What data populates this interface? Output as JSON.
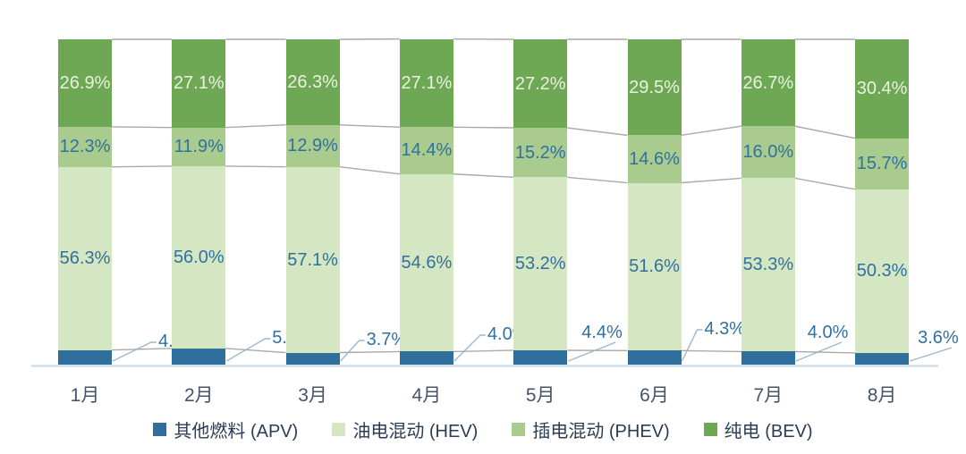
{
  "chart_data": {
    "type": "bar",
    "subtype": "stacked-column-100-percent",
    "title": "",
    "xlabel": "",
    "ylabel": "",
    "ylim": [
      0,
      100
    ],
    "grid": false,
    "legend_position": "bottom",
    "categories": [
      "1月",
      "2月",
      "3月",
      "4月",
      "5月",
      "6月",
      "7月",
      "8月"
    ],
    "series": [
      {
        "key": "apv",
        "name": "其他燃料 (APV)",
        "color": "#2e6f9b",
        "values": [
          4.5,
          5.0,
          3.7,
          4.0,
          4.4,
          4.3,
          4.0,
          3.6
        ],
        "labels": [
          "4.5%",
          "5.0%",
          "3.7%",
          "4.0%",
          "4.4%",
          "4.3%",
          "4.0%",
          "3.6%"
        ],
        "label_color": "#31719f",
        "label_placement": "outside-right-with-leader"
      },
      {
        "key": "hev",
        "name": "油电混动 (HEV)",
        "color": "#d5e6c3",
        "values": [
          56.3,
          56.0,
          57.1,
          54.6,
          53.2,
          51.6,
          53.3,
          50.3
        ],
        "labels": [
          "56.3%",
          "56.0%",
          "57.1%",
          "54.6%",
          "53.2%",
          "51.6%",
          "53.3%",
          "50.3%"
        ],
        "label_color": "#31719f",
        "label_placement": "inside-center"
      },
      {
        "key": "phev",
        "name": "插电混动 (PHEV)",
        "color": "#a9cb8e",
        "values": [
          12.3,
          11.9,
          12.9,
          14.4,
          15.2,
          14.6,
          16.0,
          15.7
        ],
        "labels": [
          "12.3%",
          "11.9%",
          "12.9%",
          "14.4%",
          "15.2%",
          "14.6%",
          "16.0%",
          "15.7%"
        ],
        "label_color": "#31719f",
        "label_placement": "inside-center"
      },
      {
        "key": "bev",
        "name": "纯电 (BEV)",
        "color": "#6fa855",
        "values": [
          26.9,
          27.1,
          26.3,
          27.1,
          27.2,
          29.5,
          26.7,
          30.4
        ],
        "labels": [
          "26.9%",
          "27.1%",
          "26.3%",
          "27.1%",
          "27.2%",
          "29.5%",
          "26.7%",
          "30.4%"
        ],
        "label_color": "#e9f2df",
        "label_placement": "inside-center"
      }
    ],
    "colors": {
      "series_connector_lines": "#a9a9a9",
      "leader_lines": "#9db7d2",
      "baseline_axis": "#cfdfec",
      "x_axis_labels": "#44546a",
      "legend_text": "#2b3c55"
    }
  }
}
